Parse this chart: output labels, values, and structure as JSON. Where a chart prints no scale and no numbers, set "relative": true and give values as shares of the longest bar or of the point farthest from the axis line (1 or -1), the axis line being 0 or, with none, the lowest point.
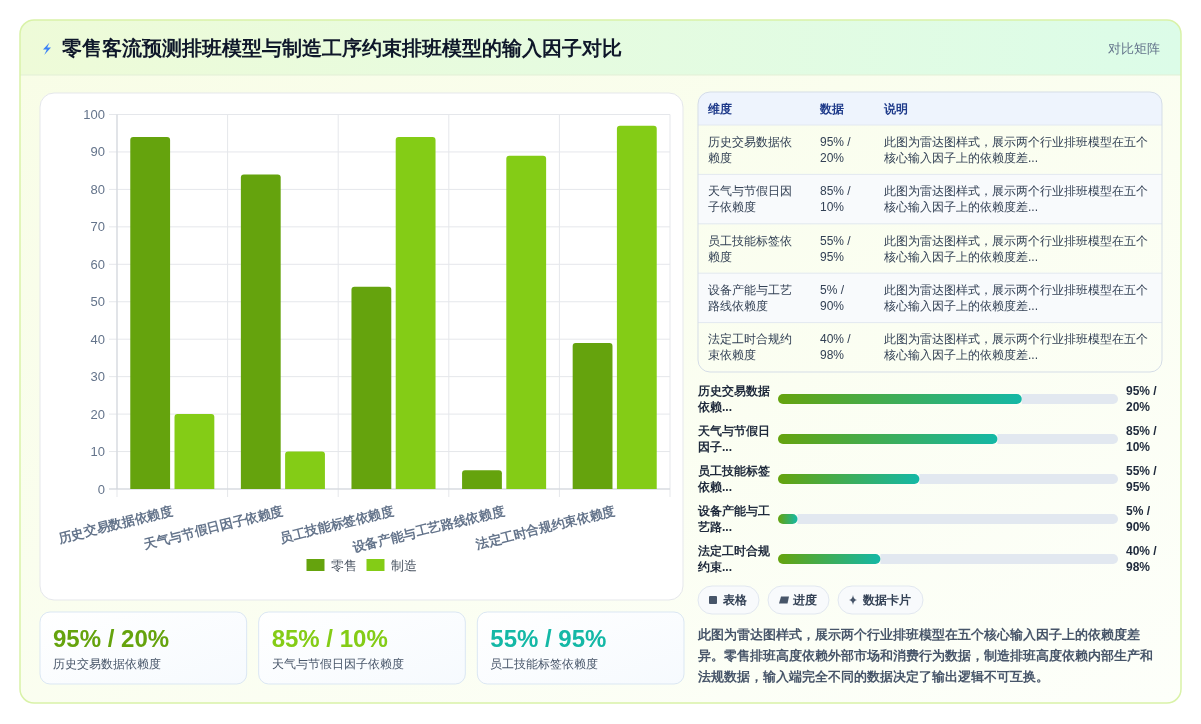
{
  "chart_data": [
    {
      "type": "other",
      "title": "零售客流预测排班模型与制造工序约束排班模型的输入因子对比",
      "subtitle": "对比矩阵"
    },
    {
      "type": "bar",
      "categories": [
        "历史交易数据依赖度",
        "天气与节假日因子依赖度",
        "员工技能标签依赖度",
        "设备产能与工艺路线依赖度",
        "法定工时合规约束依赖度"
      ],
      "series": [
        {
          "name": "零售",
          "color": "#65a30d",
          "values": [
            94,
            84,
            54,
            5,
            39
          ]
        },
        {
          "name": "制造",
          "color": "#84cc16",
          "values": [
            20,
            10,
            94,
            89,
            97
          ]
        }
      ],
      "ylim": [
        0,
        100
      ],
      "yticks": [
        0,
        10,
        20,
        30,
        40,
        50,
        60,
        70,
        80,
        90,
        100
      ],
      "grid": true,
      "legend": "bottom"
    },
    {
      "type": "other",
      "categories": [
        "历史交易数据依赖度",
        "天气与节假日因子依赖度",
        "员工技能标签依赖度"
      ],
      "value_labels": [
        "95% / 20%",
        "85% / 10%",
        "55% / 95%"
      ],
      "colors": [
        "#65a30d",
        "#84cc16",
        "#14b8a6"
      ]
    },
    {
      "type": "other",
      "categories": [
        "维度",
        "数据",
        "说明"
      ],
      "cell_labels": [
        [
          "历史交易数据依赖度",
          "95% / 20%",
          "此图为雷达图样式，展示两个行业排班模型在五个核心输入因子上的依赖度差..."
        ],
        [
          "天气与节假日因子依赖度",
          "85% / 10%",
          "此图为雷达图样式，展示两个行业排班模型在五个核心输入因子上的依赖度差..."
        ],
        [
          "员工技能标签依赖度",
          "55% / 95%",
          "此图为雷达图样式，展示两个行业排班模型在五个核心输入因子上的依赖度差..."
        ],
        [
          "设备产能与工艺路线依赖度",
          "5% / 90%",
          "此图为雷达图样式，展示两个行业排班模型在五个核心输入因子上的依赖度差..."
        ],
        [
          "法定工时合规约束依赖度",
          "40% / 98%",
          "此图为雷达图样式，展示两个行业排班模型在五个核心输入因子上的依赖度差..."
        ]
      ]
    },
    {
      "type": "bar",
      "orientation": "horizontal",
      "relative": true,
      "categories": [
        "历史交易数据依赖...",
        "天气与节假日因子...",
        "员工技能标签依赖...",
        "设备产能与工艺路...",
        "法定工时合规约束..."
      ],
      "y2_categories": [
        "95% / 20%",
        "85% / 10%",
        "55% / 95%",
        "5% / 90%",
        "40% / 98%"
      ],
      "values": [
        1,
        0.9,
        0.58,
        0.08,
        0.42
      ],
      "color": "#65a30d"
    },
    {
      "type": "other",
      "categories": [
        "表格",
        "进度",
        "数据卡片"
      ],
      "annotations": [
        "此图为雷达图样式，展示两个行业排班模型在五个核心输入因子上的依赖度差异。零售排班高度依赖外部市场和消费行为数据，制造排班高度依赖内部生产和法规数据，输入端完全不同的数据决定了输出逻辑不可互换。"
      ]
    }
  ]
}
